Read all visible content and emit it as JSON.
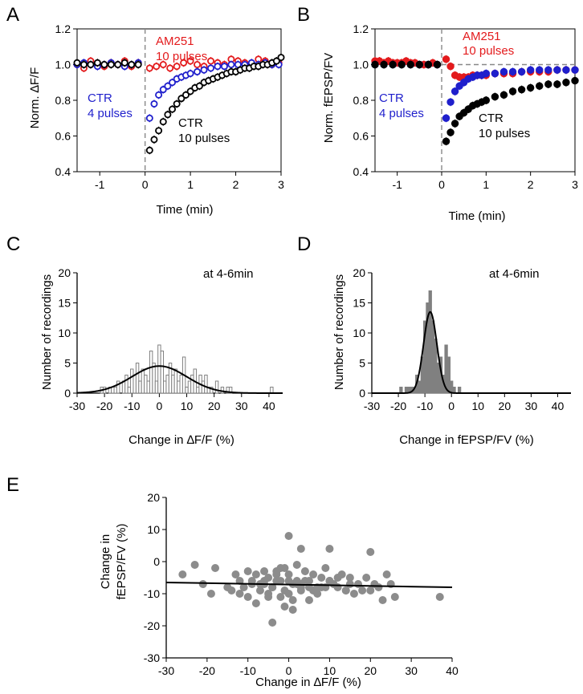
{
  "chart_data": [
    {
      "panel": "A",
      "type": "scatter",
      "xlabel": "Time (min)",
      "ylabel": "Norm. ∆F/F",
      "xlim": [
        -1.5,
        3
      ],
      "ylim": [
        0.4,
        1.2
      ],
      "xticks": [
        "-1",
        "0",
        "1",
        "2",
        "3"
      ],
      "yticks": [
        "0.4",
        "0.6",
        "0.8",
        "1.0",
        "1.2"
      ],
      "stim_marker_x": 0,
      "series": [
        {
          "name": "AM251 10 pulses",
          "label_lines": [
            "AM251",
            "10 pulses"
          ],
          "color": "#e31a1c",
          "x": [
            -1.5,
            -1.35,
            -1.2,
            -1.05,
            -0.9,
            -0.75,
            -0.6,
            -0.45,
            -0.3,
            -0.15,
            0.1,
            0.25,
            0.4,
            0.55,
            0.7,
            0.85,
            1.0,
            1.15,
            1.3,
            1.45,
            1.6,
            1.75,
            1.9,
            2.05,
            2.2,
            2.35,
            2.5,
            2.65,
            2.8,
            2.95
          ],
          "y": [
            1.0,
            0.98,
            1.02,
            1.0,
            0.99,
            1.01,
            1.0,
            1.02,
            0.99,
            1.01,
            0.98,
            0.99,
            1.0,
            0.98,
            0.99,
            1.01,
            1.02,
            1.0,
            0.99,
            1.02,
            1.01,
            1.0,
            1.03,
            1.02,
            1.01,
            1.0,
            1.03,
            1.02,
            1.0,
            1.01
          ]
        },
        {
          "name": "CTR 4 pulses",
          "label_lines": [
            "CTR",
            "4 pulses"
          ],
          "color": "#1f1fcc",
          "x": [
            -1.5,
            -1.35,
            -1.2,
            -1.05,
            -0.9,
            -0.75,
            -0.6,
            -0.45,
            -0.3,
            -0.15,
            0.1,
            0.2,
            0.3,
            0.4,
            0.5,
            0.6,
            0.7,
            0.8,
            0.9,
            1.0,
            1.15,
            1.3,
            1.45,
            1.6,
            1.75,
            1.9,
            2.05,
            2.2,
            2.35,
            2.5,
            2.65,
            2.8,
            2.95
          ],
          "y": [
            1.0,
            1.01,
            1.0,
            0.99,
            1.0,
            1.01,
            1.0,
            0.99,
            1.0,
            1.01,
            0.7,
            0.78,
            0.83,
            0.86,
            0.88,
            0.9,
            0.92,
            0.93,
            0.94,
            0.95,
            0.96,
            0.97,
            0.98,
            0.99,
            0.99,
            1.0,
            1.0,
            1.0,
            1.01,
            1.0,
            1.01,
            1.0,
            1.0
          ]
        },
        {
          "name": "CTR 10 pulses",
          "label_lines": [
            "CTR",
            "10 pulses"
          ],
          "color": "#000000",
          "x": [
            -1.5,
            -1.35,
            -1.2,
            -1.05,
            -0.9,
            -0.75,
            -0.6,
            -0.45,
            -0.3,
            -0.15,
            0.1,
            0.2,
            0.3,
            0.4,
            0.5,
            0.6,
            0.7,
            0.8,
            0.9,
            1.0,
            1.1,
            1.2,
            1.3,
            1.4,
            1.5,
            1.6,
            1.7,
            1.8,
            1.9,
            2.0,
            2.1,
            2.2,
            2.3,
            2.4,
            2.5,
            2.6,
            2.7,
            2.8,
            2.9,
            3.0
          ],
          "y": [
            1.01,
            1.0,
            1.0,
            1.01,
            1.0,
            1.0,
            1.0,
            1.01,
            1.0,
            1.0,
            0.52,
            0.58,
            0.63,
            0.68,
            0.72,
            0.75,
            0.78,
            0.81,
            0.83,
            0.85,
            0.87,
            0.88,
            0.9,
            0.91,
            0.92,
            0.93,
            0.94,
            0.95,
            0.96,
            0.96,
            0.97,
            0.98,
            0.98,
            0.99,
            0.99,
            1.0,
            1.0,
            1.01,
            1.02,
            1.04
          ]
        }
      ]
    },
    {
      "panel": "B",
      "type": "scatter",
      "xlabel": "Time (min)",
      "ylabel": "Norm. fEPSP/FV",
      "xlim": [
        -1.5,
        3
      ],
      "ylim": [
        0.4,
        1.2
      ],
      "xticks": [
        "-1",
        "0",
        "1",
        "2",
        "3"
      ],
      "yticks": [
        "0.4",
        "0.6",
        "0.8",
        "1.0",
        "1.2"
      ],
      "stim_marker_x": 0,
      "reference_y": 1.0,
      "series": [
        {
          "name": "AM251 10 pulses",
          "label_lines": [
            "AM251",
            "10 pulses"
          ],
          "color": "#e31a1c",
          "x": [
            -1.5,
            -1.4,
            -1.3,
            -1.2,
            -1.1,
            -1.0,
            -0.9,
            -0.8,
            -0.7,
            -0.6,
            -0.5,
            -0.4,
            -0.3,
            -0.2,
            -0.1,
            0.1,
            0.2,
            0.3,
            0.4,
            0.5,
            0.6,
            0.7,
            0.8,
            0.9,
            1.0,
            1.2,
            1.4,
            1.6,
            1.8,
            2.0,
            2.2,
            2.4,
            2.6,
            2.8,
            3.0
          ],
          "y": [
            1.02,
            1.02,
            1.01,
            1.02,
            1.01,
            1.01,
            1.01,
            1.02,
            1.01,
            1.01,
            1.0,
            1.0,
            1.0,
            1.01,
            1.0,
            1.03,
            0.99,
            0.94,
            0.93,
            0.93,
            0.93,
            0.94,
            0.94,
            0.94,
            0.94,
            0.95,
            0.95,
            0.95,
            0.96,
            0.96,
            0.96,
            0.96,
            0.97,
            0.97,
            0.97
          ]
        },
        {
          "name": "CTR 4 pulses",
          "label_lines": [
            "CTR",
            "4 pulses"
          ],
          "color": "#1f1fcc",
          "x": [
            -1.5,
            -1.3,
            -1.1,
            -0.9,
            -0.7,
            -0.5,
            -0.3,
            -0.1,
            0.1,
            0.2,
            0.3,
            0.4,
            0.5,
            0.6,
            0.7,
            0.8,
            0.9,
            1.0,
            1.2,
            1.4,
            1.6,
            1.8,
            2.0,
            2.2,
            2.4,
            2.6,
            2.8,
            3.0
          ],
          "y": [
            1.0,
            1.0,
            1.0,
            1.0,
            1.0,
            1.0,
            1.0,
            1.0,
            0.7,
            0.79,
            0.85,
            0.88,
            0.9,
            0.92,
            0.93,
            0.94,
            0.94,
            0.95,
            0.95,
            0.96,
            0.96,
            0.96,
            0.97,
            0.97,
            0.97,
            0.97,
            0.97,
            0.97
          ]
        },
        {
          "name": "CTR 10 pulses",
          "label_lines": [
            "CTR",
            "10 pulses"
          ],
          "color": "#000000",
          "x": [
            -1.5,
            -1.3,
            -1.1,
            -0.9,
            -0.7,
            -0.5,
            -0.3,
            -0.1,
            0.1,
            0.2,
            0.3,
            0.4,
            0.5,
            0.6,
            0.7,
            0.8,
            0.9,
            1.0,
            1.2,
            1.4,
            1.6,
            1.8,
            2.0,
            2.2,
            2.4,
            2.6,
            2.8,
            3.0
          ],
          "y": [
            1.0,
            1.0,
            1.0,
            1.0,
            1.0,
            1.0,
            1.0,
            1.0,
            0.57,
            0.62,
            0.67,
            0.71,
            0.73,
            0.75,
            0.77,
            0.78,
            0.79,
            0.8,
            0.82,
            0.83,
            0.85,
            0.86,
            0.87,
            0.88,
            0.89,
            0.89,
            0.9,
            0.91
          ]
        }
      ]
    },
    {
      "panel": "C",
      "type": "bar",
      "annotation": "at 4-6min",
      "xlabel": "Change in ∆F/F (%)",
      "ylabel": "Number of recordings",
      "xlim": [
        -30,
        45
      ],
      "ylim": [
        0,
        20
      ],
      "xticks": [
        "-30",
        "-20",
        "-10",
        "0",
        "10",
        "20",
        "30",
        "40"
      ],
      "yticks": [
        "0",
        "5",
        "10",
        "15",
        "20"
      ],
      "bar_fill": "#ffffff",
      "bar_stroke": "#808080",
      "bin_width": 1,
      "bins": [
        -21,
        -20,
        -19,
        -18,
        -17,
        -16,
        -15,
        -14,
        -13,
        -12,
        -11,
        -10,
        -9,
        -8,
        -7,
        -6,
        -5,
        -4,
        -3,
        -2,
        -1,
        0,
        1,
        2,
        3,
        4,
        5,
        6,
        7,
        8,
        9,
        10,
        11,
        12,
        13,
        14,
        15,
        16,
        17,
        18,
        19,
        20,
        21,
        22,
        23,
        24,
        25,
        26,
        41
      ],
      "counts": [
        1,
        1,
        0,
        1,
        1,
        1,
        2,
        0,
        2,
        3,
        1,
        4,
        3,
        5,
        2,
        4,
        3,
        2,
        7,
        5,
        2,
        8,
        7,
        2,
        3,
        5,
        3,
        4,
        2,
        3,
        6,
        1,
        2,
        3,
        4,
        1,
        3,
        2,
        3,
        1,
        1,
        0,
        2,
        0,
        1,
        0,
        1,
        1,
        1
      ],
      "fit": {
        "type": "gaussian",
        "amplitude": 4.5,
        "mean": 0,
        "sd": 10,
        "color": "#000000"
      }
    },
    {
      "panel": "D",
      "type": "bar",
      "annotation": "at 4-6min",
      "xlabel": "Change in fEPSP/FV (%)",
      "ylabel": "Number of recordings",
      "xlim": [
        -30,
        45
      ],
      "ylim": [
        0,
        20
      ],
      "xticks": [
        "-30",
        "-20",
        "-10",
        "0",
        "10",
        "20",
        "30",
        "40"
      ],
      "yticks": [
        "0",
        "5",
        "10",
        "15",
        "20"
      ],
      "bar_fill": "#808080",
      "bar_stroke": "#808080",
      "bin_width": 1,
      "bins": [
        -19,
        -18,
        -17,
        -16,
        -15,
        -14,
        -13,
        -12,
        -11,
        -10,
        -9,
        -8,
        -7,
        -6,
        -5,
        -4,
        -3,
        -2,
        -1,
        0,
        1,
        2,
        3
      ],
      "counts": [
        1,
        0,
        1,
        1,
        1,
        1,
        3,
        2,
        6,
        12,
        15,
        17,
        12,
        9,
        5,
        6,
        3,
        8,
        6,
        2,
        1,
        0,
        1
      ],
      "fit": {
        "type": "gaussian",
        "amplitude": 13.5,
        "mean": -8,
        "sd": 2.5,
        "color": "#000000"
      }
    },
    {
      "panel": "E",
      "type": "scatter",
      "xlabel": "Change in ∆F/F (%)",
      "ylabel_lines": [
        "Change in",
        "fEPSP/FV (%)"
      ],
      "xlim": [
        -30,
        40
      ],
      "ylim": [
        -30,
        20
      ],
      "xticks": [
        "-30",
        "-20",
        "-10",
        "0",
        "10",
        "20",
        "30",
        "40"
      ],
      "yticks": [
        "20",
        "10",
        "0",
        "-10",
        "-20",
        "-30"
      ],
      "point_color": "#8c8c8c",
      "x": [
        -26,
        -23,
        -21,
        -18,
        -15,
        -13,
        -12,
        -11,
        -10,
        -9,
        -8,
        -8,
        -7,
        -6,
        -6,
        -5,
        -5,
        -4,
        -4,
        -3,
        -3,
        -2,
        -2,
        -1,
        -1,
        0,
        0,
        1,
        1,
        2,
        2,
        3,
        3,
        4,
        5,
        5,
        6,
        7,
        8,
        9,
        10,
        10,
        11,
        12,
        13,
        14,
        15,
        16,
        18,
        19,
        20,
        21,
        22,
        23,
        24,
        25,
        26,
        37,
        -14,
        -10,
        -7,
        -2,
        0,
        3,
        6,
        8,
        -4,
        -1,
        1,
        4,
        9,
        12,
        17,
        20,
        -19,
        -12,
        -3,
        5,
        10,
        15,
        2,
        -6,
        0,
        7,
        14,
        -9,
        -5,
        3
      ],
      "y": [
        -4,
        -1,
        -7,
        -2,
        -8,
        -4,
        -10,
        -8,
        -11,
        -6,
        -4,
        -13,
        -9,
        -7,
        -3,
        -10,
        -5,
        -19,
        -8,
        -6,
        -3,
        -11,
        -6,
        -9,
        -2,
        -4,
        8,
        -15,
        -7,
        -6,
        -1,
        -9,
        4,
        -3,
        -12,
        -6,
        -4,
        -10,
        -8,
        -2,
        -6,
        4,
        -7,
        -8,
        -4,
        -9,
        -7,
        -10,
        -9,
        -5,
        3,
        -7,
        -8,
        -12,
        -4,
        -7,
        -11,
        -11,
        -9,
        -3,
        -7,
        -2,
        -6,
        -7,
        -9,
        -5,
        -8,
        -14,
        -12,
        -6,
        -8,
        -5,
        -7,
        -9,
        -10,
        -6,
        -4,
        -8,
        -6,
        -5,
        -7,
        -6,
        -10,
        -8,
        -9,
        -7,
        -11,
        -8
      ],
      "fit": {
        "type": "line",
        "x": [
          -30,
          40
        ],
        "y": [
          -6.5,
          -8.0
        ],
        "color": "#000000"
      }
    }
  ],
  "panel_letters": [
    "A",
    "B",
    "C",
    "D",
    "E"
  ],
  "annotations": {
    "A": [
      {
        "lines": [
          "AM251",
          "10 pulses"
        ],
        "color": "#e31a1c"
      },
      {
        "lines": [
          "CTR",
          "4 pulses"
        ],
        "color": "#1f1fcc"
      },
      {
        "lines": [
          "CTR",
          "10 pulses"
        ],
        "color": "#000000"
      }
    ],
    "B": [
      {
        "lines": [
          "AM251",
          "10 pulses"
        ],
        "color": "#e31a1c"
      },
      {
        "lines": [
          "CTR",
          "4 pulses"
        ],
        "color": "#1f1fcc"
      },
      {
        "lines": [
          "CTR",
          "10 pulses"
        ],
        "color": "#000000"
      }
    ]
  }
}
